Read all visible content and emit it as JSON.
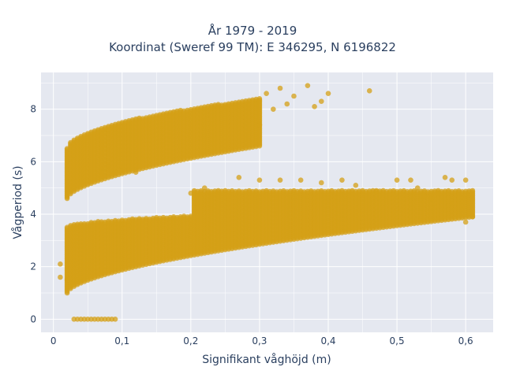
{
  "chart_data": {
    "type": "scatter",
    "title_line1": "År 1979 - 2019",
    "title_line2": "Koordinat (Sweref 99 TM): E 346295, N 6196822",
    "xlabel": "Signifikant våghöjd (m)",
    "ylabel": "Vågperiod (s)",
    "xlim": [
      -0.018,
      0.64
    ],
    "ylim": [
      -0.5,
      9.4
    ],
    "x_ticks": [
      0,
      0.1,
      0.2,
      0.3,
      0.4,
      0.5,
      0.6
    ],
    "x_tick_labels": [
      "0",
      "0,1",
      "0,2",
      "0,3",
      "0,4",
      "0,5",
      "0,6"
    ],
    "y_ticks": [
      0,
      2,
      4,
      6,
      8
    ],
    "y_tick_labels": [
      "0",
      "2",
      "4",
      "6",
      "8"
    ],
    "grid": true,
    "marker_color": "#d4a017",
    "plot_bgcolor": "#e5e8f0",
    "clusters": [
      {
        "name": "lower band",
        "x_range": [
          0.02,
          0.61
        ],
        "y_min_at_start": 1.0,
        "y_min_at_end": 3.9,
        "y_max_at_start": 3.5,
        "y_max_at_end": 4.3
      },
      {
        "name": "upper band",
        "x_range": [
          0.02,
          0.3
        ],
        "y_min_at_start": 4.6,
        "y_min_at_end": 6.6,
        "y_max_at_start": 6.5,
        "y_max_at_end": 8.4
      },
      {
        "name": "zero period",
        "x_range": [
          0.03,
          0.09
        ],
        "y": 0
      }
    ],
    "scattered_points": [
      [
        0.01,
        1.6
      ],
      [
        0.01,
        2.1
      ],
      [
        0.02,
        1.5
      ],
      [
        0.27,
        5.4
      ],
      [
        0.3,
        7.4
      ],
      [
        0.31,
        8.6
      ],
      [
        0.32,
        8.0
      ],
      [
        0.33,
        8.8
      ],
      [
        0.34,
        8.2
      ],
      [
        0.35,
        8.5
      ],
      [
        0.37,
        8.9
      ],
      [
        0.38,
        8.1
      ],
      [
        0.39,
        8.3
      ],
      [
        0.4,
        8.6
      ],
      [
        0.46,
        8.7
      ],
      [
        0.3,
        5.3
      ],
      [
        0.33,
        5.3
      ],
      [
        0.36,
        5.3
      ],
      [
        0.39,
        5.2
      ],
      [
        0.42,
        5.3
      ],
      [
        0.44,
        5.1
      ],
      [
        0.5,
        5.3
      ],
      [
        0.52,
        5.3
      ],
      [
        0.53,
        5.0
      ],
      [
        0.57,
        5.4
      ],
      [
        0.58,
        5.3
      ],
      [
        0.6,
        5.3
      ],
      [
        0.2,
        4.8
      ],
      [
        0.22,
        5.0
      ],
      [
        0.24,
        4.9
      ],
      [
        0.6,
        3.7
      ],
      [
        0.61,
        3.9
      ],
      [
        0.12,
        5.6
      ],
      [
        0.1,
        5.8
      ],
      [
        0.09,
        5.6
      ],
      [
        0.08,
        5.8
      ],
      [
        0.07,
        5.6
      ],
      [
        0.56,
        4.8
      ],
      [
        0.55,
        4.6
      ],
      [
        0.58,
        4.4
      ],
      [
        0.54,
        4.7
      ],
      [
        0.47,
        4.9
      ]
    ]
  }
}
